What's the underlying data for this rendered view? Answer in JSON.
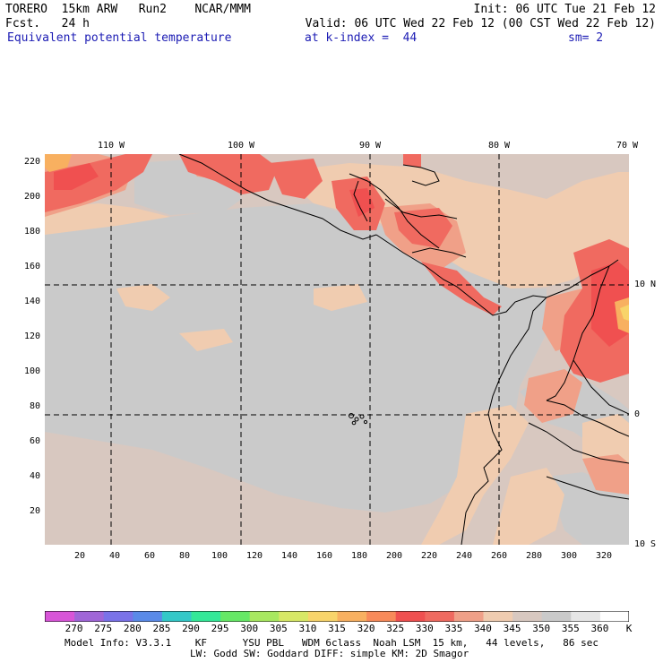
{
  "header": {
    "model": "TORERO  15km ARW   Run2    NCAR/MMM",
    "init": "Init: 06 UTC Tue 21 Feb 12",
    "forecast": "Fcst.   24 h",
    "valid": "Valid: 06 UTC Wed 22 Feb 12 (00 CST Wed 22 Feb 12)",
    "field": "Equivalent potential temperature",
    "level": "at k-index =  44",
    "smoothing": "sm= 2"
  },
  "axes": {
    "top_lon_labels": [
      "110 W",
      "100 W",
      "90 W",
      "80 W",
      "70 W"
    ],
    "right_lat_labels": [
      "10 N",
      "0",
      "10 S"
    ],
    "left_grid_labels": [
      "220",
      "200",
      "180",
      "160",
      "140",
      "120",
      "100",
      "80",
      "60",
      "40",
      "20"
    ],
    "bottom_grid_labels": [
      "20",
      "40",
      "60",
      "80",
      "100",
      "120",
      "140",
      "160",
      "180",
      "200",
      "220",
      "240",
      "260",
      "280",
      "300",
      "320"
    ]
  },
  "colorbar": {
    "labels": [
      "270",
      "275",
      "280",
      "285",
      "290",
      "295",
      "300",
      "305",
      "310",
      "315",
      "320",
      "325",
      "330",
      "335",
      "340",
      "345",
      "350",
      "355",
      "360"
    ],
    "unit": "K",
    "colors": [
      "#d855d8",
      "#a066d8",
      "#7a72e8",
      "#5a8ae8",
      "#33c8c8",
      "#33e898",
      "#66e866",
      "#a8e860",
      "#d8e866",
      "#f8d46a",
      "#f8b060",
      "#f88a5a",
      "#f05050",
      "#f06a60",
      "#f0a088",
      "#f0ccb0",
      "#d8c8c0",
      "#cacaca",
      "#e6e6e6",
      "#ffffff"
    ]
  },
  "map_colors": {
    "ocean_base": "#d8c8c0",
    "gray": "#cacaca",
    "light_orange": "#f0ccb0",
    "salmon": "#f0a088",
    "red": "#f06a60",
    "deep_red": "#f05050",
    "orange": "#f8b060",
    "yellow": "#f8d46a",
    "coast": "#000000",
    "grid_line": "#000000"
  },
  "footer": {
    "line1": "Model Info: V3.3.1    KF      YSU PBL   WDM 6class  Noah LSM  15 km,   44 levels,   86 sec",
    "line2": "LW: Godd SW: Goddard DIFF: simple KM: 2D Smagor"
  }
}
